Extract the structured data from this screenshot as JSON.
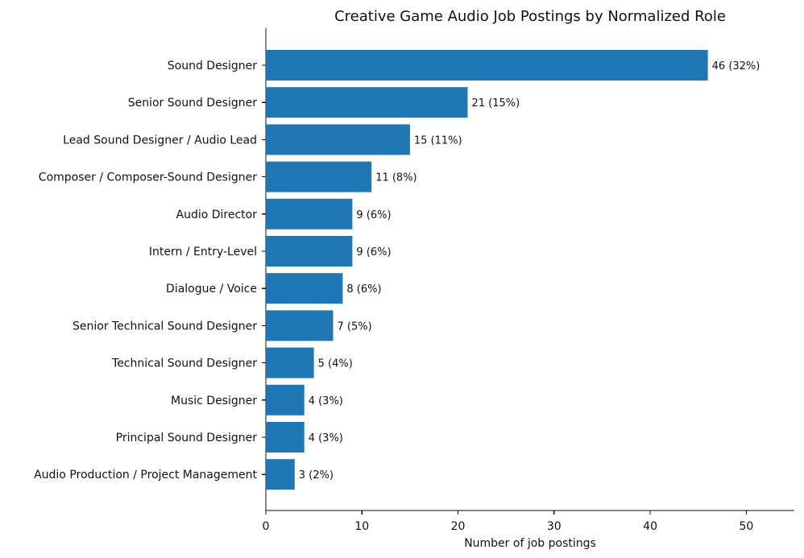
{
  "chart_data": {
    "type": "bar",
    "orientation": "horizontal",
    "title": "Creative Game Audio Job Postings by Normalized Role",
    "xlabel": "Number of job postings",
    "ylabel": "",
    "xlim": [
      0,
      55
    ],
    "xticks": [
      0,
      10,
      20,
      30,
      40,
      50
    ],
    "grid": false,
    "legend": "none",
    "bar_color": "#1f77b4",
    "categories": [
      "Sound Designer",
      "Senior Sound Designer",
      "Lead Sound Designer / Audio Lead",
      "Composer / Composer-Sound Designer",
      "Audio Director",
      "Intern / Entry-Level",
      "Dialogue / Voice",
      "Senior Technical Sound Designer",
      "Technical Sound Designer",
      "Music Designer",
      "Principal Sound Designer",
      "Audio Production / Project Management"
    ],
    "values": [
      46,
      21,
      15,
      11,
      9,
      9,
      8,
      7,
      5,
      4,
      4,
      3
    ],
    "data_labels": [
      "46 (32%)",
      "21 (15%)",
      "15 (11%)",
      "11 (8%)",
      "9 (6%)",
      "9 (6%)",
      "8 (6%)",
      "7 (5%)",
      "5 (4%)",
      "4 (3%)",
      "4 (3%)",
      "3 (2%)"
    ]
  }
}
